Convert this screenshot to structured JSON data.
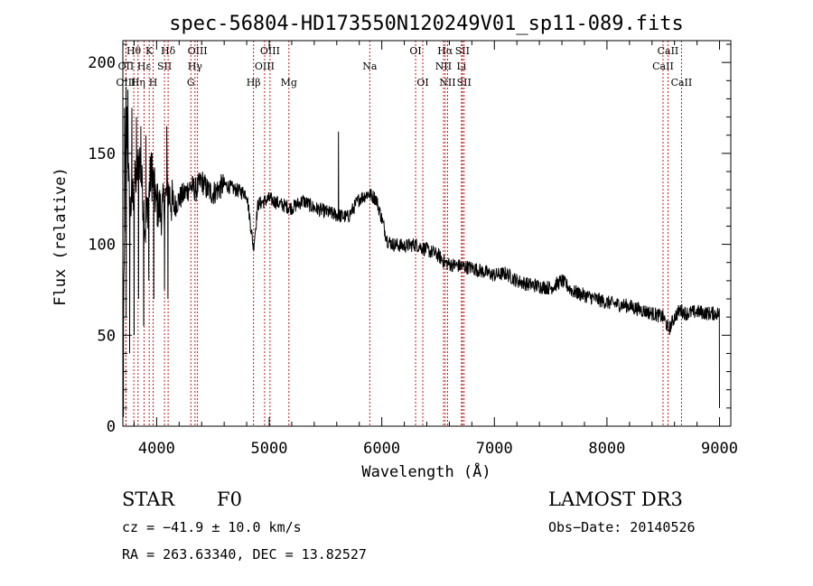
{
  "chart_data": {
    "type": "line",
    "title": "spec-56804-HD173550N120249V01_sp11-089.fits",
    "xlabel": "Wavelength (Å)",
    "ylabel": "Flux (relative)",
    "xlim": [
      3700,
      9100
    ],
    "ylim": [
      0,
      212
    ],
    "xticks": [
      4000,
      5000,
      6000,
      7000,
      8000,
      9000
    ],
    "xtick_labels": [
      "4000",
      "5000",
      "6000",
      "7000",
      "8000",
      "9000"
    ],
    "yticks": [
      0,
      50,
      100,
      150,
      200
    ],
    "ytick_labels": [
      "0",
      "50",
      "100",
      "150",
      "200"
    ],
    "grid": false,
    "series": [
      {
        "name": "flux",
        "noise_amplitude": 4,
        "x": [
          3700,
          3730,
          3760,
          3800,
          3850,
          3900,
          3950,
          4000,
          4050,
          4100,
          4150,
          4200,
          4250,
          4300,
          4350,
          4400,
          4450,
          4500,
          4600,
          4700,
          4800,
          4860,
          4900,
          5000,
          5100,
          5200,
          5300,
          5400,
          5500,
          5600,
          5700,
          5800,
          5880,
          5950,
          6000,
          6050,
          6100,
          6200,
          6300,
          6400,
          6500,
          6560,
          6600,
          6700,
          6800,
          6900,
          7000,
          7100,
          7200,
          7300,
          7400,
          7500,
          7600,
          7700,
          7800,
          7900,
          8000,
          8100,
          8200,
          8300,
          8400,
          8500,
          8550,
          8600,
          8650,
          8700,
          8800,
          8900,
          9000
        ],
        "y": [
          20,
          180,
          118,
          130,
          148,
          108,
          140,
          122,
          118,
          130,
          120,
          125,
          128,
          132,
          130,
          135,
          130,
          128,
          133,
          130,
          128,
          98,
          122,
          125,
          122,
          120,
          124,
          120,
          118,
          116,
          115,
          125,
          128,
          125,
          114,
          102,
          100,
          99,
          100,
          97,
          94,
          90,
          89,
          88,
          87,
          85,
          83,
          84,
          80,
          78,
          77,
          76,
          80,
          74,
          72,
          70,
          68,
          67,
          66,
          64,
          62,
          60,
          53,
          60,
          64,
          62,
          63,
          62,
          62
        ]
      }
    ],
    "spikes": [
      {
        "x": 3705,
        "y": 5
      },
      {
        "x": 3715,
        "y": 175
      },
      {
        "x": 3730,
        "y": 60
      },
      {
        "x": 3745,
        "y": 185
      },
      {
        "x": 3760,
        "y": 40
      },
      {
        "x": 3780,
        "y": 175
      },
      {
        "x": 3800,
        "y": 50
      },
      {
        "x": 3820,
        "y": 170
      },
      {
        "x": 3840,
        "y": 70
      },
      {
        "x": 3860,
        "y": 165
      },
      {
        "x": 3885,
        "y": 55
      },
      {
        "x": 3905,
        "y": 160
      },
      {
        "x": 3930,
        "y": 80
      },
      {
        "x": 3960,
        "y": 150
      },
      {
        "x": 3975,
        "y": 70
      },
      {
        "x": 4070,
        "y": 75
      },
      {
        "x": 4090,
        "y": 165
      },
      {
        "x": 4100,
        "y": 70
      },
      {
        "x": 5615,
        "y": 162
      },
      {
        "x": 9000,
        "y": 10
      }
    ],
    "lines": [
      {
        "label": "Hθ",
        "x": 3797,
        "row": 0
      },
      {
        "label": "OII",
        "x": 3727,
        "row": 1
      },
      {
        "label": "OIII",
        "x": 3727,
        "row": 2
      },
      {
        "label": "K",
        "x": 3934,
        "row": 0
      },
      {
        "label": "Hε",
        "x": 3889,
        "row": 1
      },
      {
        "label": "Hη",
        "x": 3835,
        "row": 2
      },
      {
        "label": "Hδ",
        "x": 4102,
        "row": 0
      },
      {
        "label": "SII",
        "x": 4070,
        "row": 1
      },
      {
        "label": "H",
        "x": 3969,
        "row": 2
      },
      {
        "label": "OIII",
        "x": 4363,
        "row": 0
      },
      {
        "label": "Hγ",
        "x": 4341,
        "row": 1
      },
      {
        "label": "G",
        "x": 4304,
        "row": 2
      },
      {
        "label": "OIII",
        "x": 5007,
        "row": 0
      },
      {
        "label": "OIII",
        "x": 4959,
        "row": 1
      },
      {
        "label": "Hβ",
        "x": 4861,
        "row": 2
      },
      {
        "label": "Mg",
        "x": 5175,
        "row": 2
      },
      {
        "label": "Na",
        "x": 5893,
        "row": 1
      },
      {
        "label": "OI",
        "x": 6300,
        "row": 0
      },
      {
        "label": "OI",
        "x": 6364,
        "row": 2
      },
      {
        "label": "Hα",
        "x": 6563,
        "row": 0
      },
      {
        "label": "NII",
        "x": 6548,
        "row": 1
      },
      {
        "label": "NII",
        "x": 6584,
        "row": 2
      },
      {
        "label": "SII",
        "x": 6716,
        "row": 0
      },
      {
        "label": "Li",
        "x": 6708,
        "row": 1
      },
      {
        "label": "SII",
        "x": 6731,
        "row": 2
      },
      {
        "label": "CaII",
        "x": 8542,
        "row": 0
      },
      {
        "label": "CaII",
        "x": 8498,
        "row": 1
      },
      {
        "label": "CaII",
        "x": 8662,
        "row": 2
      }
    ]
  },
  "info": {
    "object_class": "STAR",
    "subclass": "F0",
    "survey": "LAMOST DR3",
    "cz": "cz = −41.9 ± 10.0 km/s",
    "obs_date": "Obs−Date: 20140526",
    "coords": "RA = 263.63340, DEC =  13.82527"
  },
  "colors": {
    "spectrum": "#000000",
    "line_markers": "#c00000",
    "axes": "#000000",
    "background": "#ffffff"
  }
}
